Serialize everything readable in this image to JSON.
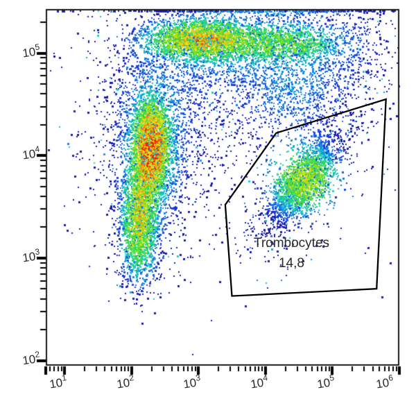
{
  "chart_data": {
    "type": "scatter",
    "subtype": "flow-cytometry-pseudocolor-density",
    "title": "",
    "xlabel": "",
    "ylabel": "",
    "x_scale": "log",
    "y_scale": "log",
    "x_range_log10": [
      0.72,
      6.0
    ],
    "y_range_log10": [
      1.95,
      5.43
    ],
    "grid": false,
    "legend": false,
    "background_color": "#ffffff",
    "frame_color": "#1a1a1a",
    "x_ticks": [
      {
        "base": "10",
        "exp": "1",
        "value": 10
      },
      {
        "base": "10",
        "exp": "2",
        "value": 100
      },
      {
        "base": "10",
        "exp": "3",
        "value": 1000
      },
      {
        "base": "10",
        "exp": "4",
        "value": 10000
      },
      {
        "base": "10",
        "exp": "5",
        "value": 100000
      },
      {
        "base": "10",
        "exp": "6",
        "value": 1000000
      }
    ],
    "y_ticks": [
      {
        "base": "10",
        "exp": "2",
        "value": 100
      },
      {
        "base": "10",
        "exp": "3",
        "value": 1000
      },
      {
        "base": "10",
        "exp": "4",
        "value": 10000
      },
      {
        "base": "10",
        "exp": "5",
        "value": 100000
      }
    ],
    "gate": {
      "label": "Trombocytes",
      "value": "14,8",
      "stroke_color": "#000000",
      "vertices_log10": [
        [
          5.8,
          4.55
        ],
        [
          4.16,
          4.22
        ],
        [
          3.4,
          3.52
        ],
        [
          3.5,
          2.63
        ],
        [
          5.66,
          2.7
        ]
      ],
      "label_center_log10": [
        4.39,
        3.05
      ]
    },
    "seed": 42,
    "colormap_stops": [
      {
        "t": 0.0,
        "c": "#16169f"
      },
      {
        "t": 0.14,
        "c": "#2133d8"
      },
      {
        "t": 0.3,
        "c": "#1887e8"
      },
      {
        "t": 0.42,
        "c": "#1fd0c8"
      },
      {
        "t": 0.55,
        "c": "#2fd943"
      },
      {
        "t": 0.68,
        "c": "#9fe021"
      },
      {
        "t": 0.78,
        "c": "#f2e117"
      },
      {
        "t": 0.86,
        "c": "#fb8d12"
      },
      {
        "t": 0.93,
        "c": "#f4420e"
      },
      {
        "t": 1.0,
        "c": "#d81606"
      }
    ],
    "populations": [
      {
        "name": "background-scatter",
        "cx": 3.2,
        "cy": 4.3,
        "sx": 1.2,
        "sy": 0.85,
        "n": 450,
        "ycut": 2.6
      },
      {
        "name": "left-scatter",
        "cx": 2.35,
        "cy": 4.35,
        "sx": 0.55,
        "sy": 0.65,
        "n": 1000
      },
      {
        "name": "mid-scatter",
        "cx": 3.3,
        "cy": 4.65,
        "sx": 0.8,
        "sy": 0.4,
        "n": 800
      },
      {
        "name": "above-gate-scatter",
        "cx": 4.45,
        "cy": 4.62,
        "sx": 0.45,
        "sy": 0.24,
        "n": 750
      },
      {
        "name": "top-right-scatter",
        "cx": 5.35,
        "cy": 5.05,
        "sx": 0.35,
        "sy": 0.33,
        "n": 400
      },
      {
        "name": "top-band-halo",
        "cx": 3.6,
        "cy": 5.03,
        "sx": 0.75,
        "sy": 0.17,
        "n": 800
      },
      {
        "name": "top-edge-pileup",
        "cx": 4.1,
        "cy": 5.42,
        "sx": 0.75,
        "sy": 0.04,
        "n": 250
      },
      {
        "name": "top-band-right",
        "cx": 4.35,
        "cy": 5.11,
        "sx": 0.42,
        "sy": 0.11,
        "n": 1300
      },
      {
        "name": "top-band-core",
        "cx": 3.05,
        "cy": 5.14,
        "sx": 0.42,
        "sy": 0.1,
        "n": 3000
      },
      {
        "name": "left-blob-halo",
        "cx": 2.27,
        "cy": 4.02,
        "sx": 0.27,
        "sy": 0.45,
        "n": 1500
      },
      {
        "name": "left-blob-bridge",
        "cx": 2.18,
        "cy": 3.7,
        "sx": 0.12,
        "sy": 0.25,
        "n": 600
      },
      {
        "name": "lower-blob-tail",
        "cx": 2.12,
        "cy": 3.02,
        "sx": 0.17,
        "sy": 0.2,
        "n": 350
      },
      {
        "name": "lower-blob-core",
        "cx": 2.09,
        "cy": 3.38,
        "sx": 0.13,
        "sy": 0.25,
        "n": 1500
      },
      {
        "name": "trombocytes-halo",
        "cx": 4.55,
        "cy": 3.75,
        "sx": 0.45,
        "sy": 0.3,
        "n": 650,
        "rot": 35,
        "s1": 0.48,
        "s2": 0.22
      },
      {
        "name": "trombocytes-core",
        "cx": 4.58,
        "cy": 3.77,
        "sx": 0.28,
        "sy": 0.18,
        "n": 2100,
        "rot": 35,
        "s1": 0.3,
        "s2": 0.12
      },
      {
        "name": "left-blob-core",
        "cx": 2.29,
        "cy": 4.1,
        "sx": 0.125,
        "sy": 0.21,
        "n": 3600
      }
    ]
  }
}
